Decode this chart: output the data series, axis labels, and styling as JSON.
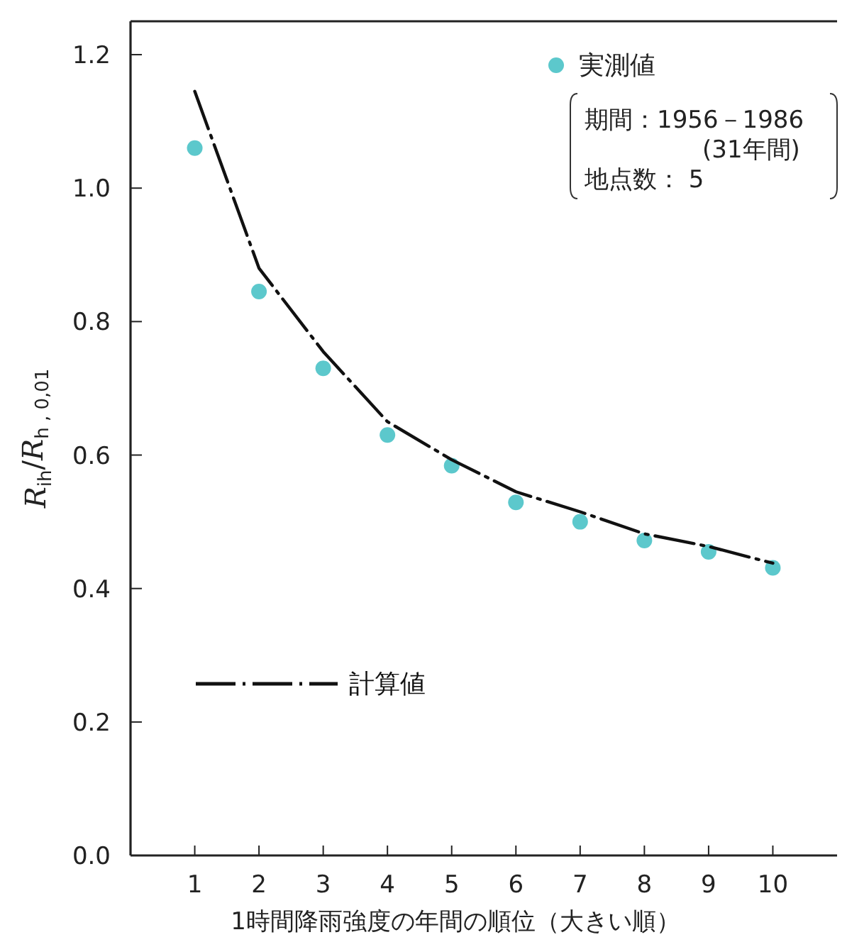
{
  "chart_data": {
    "type": "scatter",
    "xlabel": "1時間降雨強度の年間の順位（大きい順）",
    "ylabel": "*R*$_{ih}$/*R*$_{h , 0,01}$",
    "x": [
      1,
      2,
      3,
      4,
      5,
      6,
      7,
      8,
      9,
      10
    ],
    "series": [
      {
        "name": "実測値",
        "color": "#5cc8cc",
        "marker": "circle",
        "values": [
          1.06,
          0.845,
          0.73,
          0.63,
          0.584,
          0.529,
          0.5,
          0.472,
          0.455,
          0.431
        ]
      },
      {
        "name": "計算値",
        "type": "line",
        "color": "#111111",
        "line_style": "dashed",
        "values": [
          1.145,
          0.88,
          0.755,
          0.65,
          0.593,
          0.545,
          0.515,
          0.482,
          0.463,
          0.438
        ]
      }
    ],
    "annotations": [
      "期間：1956－1986",
      "(31年間)",
      "地点数： 5"
    ],
    "xlim": [
      0,
      11
    ],
    "ylim": [
      0,
      1.25
    ],
    "xticks": [
      1,
      2,
      3,
      4,
      5,
      6,
      7,
      8,
      9,
      10
    ],
    "yticks": [
      {
        "value": 0,
        "label": "0.0"
      },
      {
        "value": 0.2,
        "label": "0.2"
      },
      {
        "value": 0.4,
        "label": "0.4"
      },
      {
        "value": 0.6,
        "label": "0.6"
      },
      {
        "value": 0.8,
        "label": "0.8"
      },
      {
        "value": 1,
        "label": "1.0"
      },
      {
        "value": 1.2,
        "label": "1.2"
      }
    ],
    "legend": "top right",
    "grid": false
  }
}
